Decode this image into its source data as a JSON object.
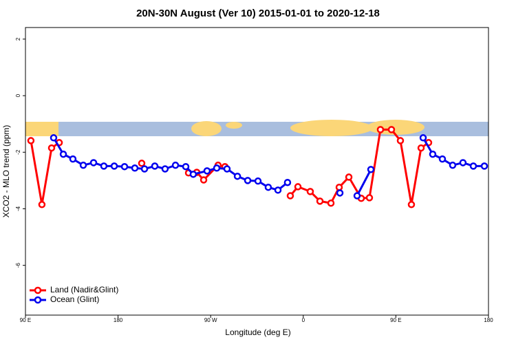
{
  "chart_data": {
    "type": "line",
    "title": "20N-30N August (Ver 10)   2015-01-01 to 2020-12-18",
    "x_label": "Longitude (deg E)",
    "y_label": "XCO2 - MLO trend (ppm)",
    "xlim": [
      90,
      540
    ],
    "ylim": [
      -7.76,
      2.41
    ],
    "xticks": [
      {
        "value": 90,
        "label": "90 E"
      },
      180,
      {
        "value": 270,
        "label": "90 W"
      },
      {
        "value": 360,
        "label": "0"
      },
      {
        "value": 450,
        "label": "90 E"
      },
      {
        "value": 540,
        "label": "180"
      }
    ],
    "yticks": [
      2,
      0,
      -2,
      -4,
      -6
    ],
    "legend": "bottomleft",
    "series": [
      {
        "name": "Land (Nadir&Glint)",
        "color": "#ff0000",
        "x": [
          95.3,
          106.0,
          115.4,
          122.8,
          null,
          203.0,
          null,
          248.5,
          256.5,
          263.2,
          277.2,
          283.9,
          null,
          347.4,
          354.8,
          366.8,
          376.2,
          386.9,
          394.9,
          404.3,
          416.3,
          424.3,
          435.0,
          445.7,
          454.4,
          465.1,
          474.5,
          481.8
        ],
        "values": [
          -1.59,
          -3.85,
          -1.85,
          -1.66,
          null,
          -2.39,
          null,
          -2.73,
          -2.71,
          -2.98,
          -2.46,
          -2.51,
          null,
          -3.54,
          -3.22,
          -3.39,
          -3.73,
          -3.8,
          -3.24,
          -2.88,
          -3.63,
          -3.61,
          -1.2,
          -1.2,
          -1.59,
          -3.85,
          -1.85,
          -1.66
        ]
      },
      {
        "name": "Ocean (Glint)",
        "color": "#0000ee",
        "x": [
          117.4,
          126.8,
          136.1,
          146.2,
          156.2,
          166.2,
          176.3,
          186.3,
          196.3,
          205.7,
          215.7,
          225.7,
          235.8,
          245.8,
          253.1,
          266.5,
          275.9,
          285.9,
          296.0,
          306.0,
          316.0,
          326.0,
          335.4,
          344.7,
          null,
          395.6,
          null,
          412.3,
          425.7,
          null,
          476.5,
          485.8,
          495.2,
          505.2,
          515.2,
          525.3,
          536.0
        ],
        "values": [
          -1.49,
          -2.07,
          -2.24,
          -2.46,
          -2.37,
          -2.49,
          -2.49,
          -2.51,
          -2.56,
          -2.59,
          -2.49,
          -2.59,
          -2.46,
          -2.51,
          -2.78,
          -2.66,
          -2.56,
          -2.59,
          -2.85,
          -3.0,
          -3.02,
          -3.24,
          -3.34,
          -3.07,
          null,
          -3.44,
          null,
          -3.54,
          -2.61,
          null,
          -1.49,
          -2.07,
          -2.24,
          -2.46,
          -2.37,
          -2.49,
          -2.49
        ]
      }
    ]
  }
}
